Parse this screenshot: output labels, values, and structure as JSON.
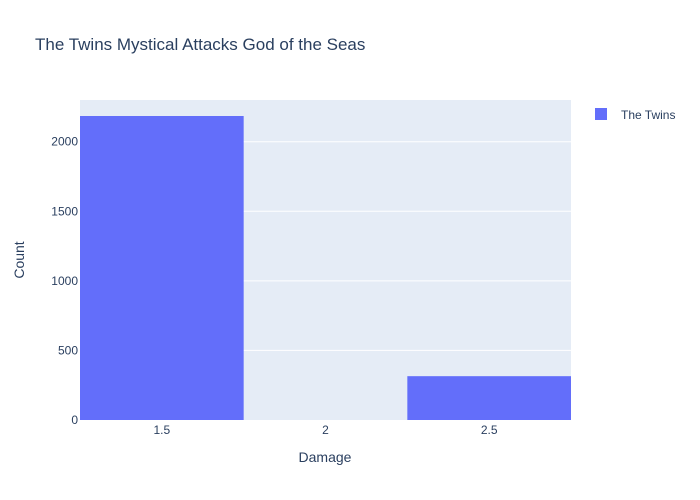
{
  "chart_data": {
    "type": "bar",
    "title": "The Twins Mystical Attacks God of the Seas",
    "xlabel": "Damage",
    "ylabel": "Count",
    "x_ticks": [
      "1.5",
      "2",
      "2.5"
    ],
    "y_ticks": [
      "0",
      "500",
      "1000",
      "1500",
      "2000"
    ],
    "xlim": [
      1.25,
      2.75
    ],
    "ylim": [
      0,
      2300
    ],
    "grid": true,
    "legend_position": "top-right",
    "series": [
      {
        "name": "The Twins",
        "color": "#636efa",
        "bins": [
          {
            "x": 1.5,
            "width": 0.5,
            "count": 2185
          },
          {
            "x": 2.0,
            "width": 0.5,
            "count": 0
          },
          {
            "x": 2.5,
            "width": 0.5,
            "count": 315
          }
        ]
      }
    ],
    "plot_bg": "#e5ecf6"
  }
}
